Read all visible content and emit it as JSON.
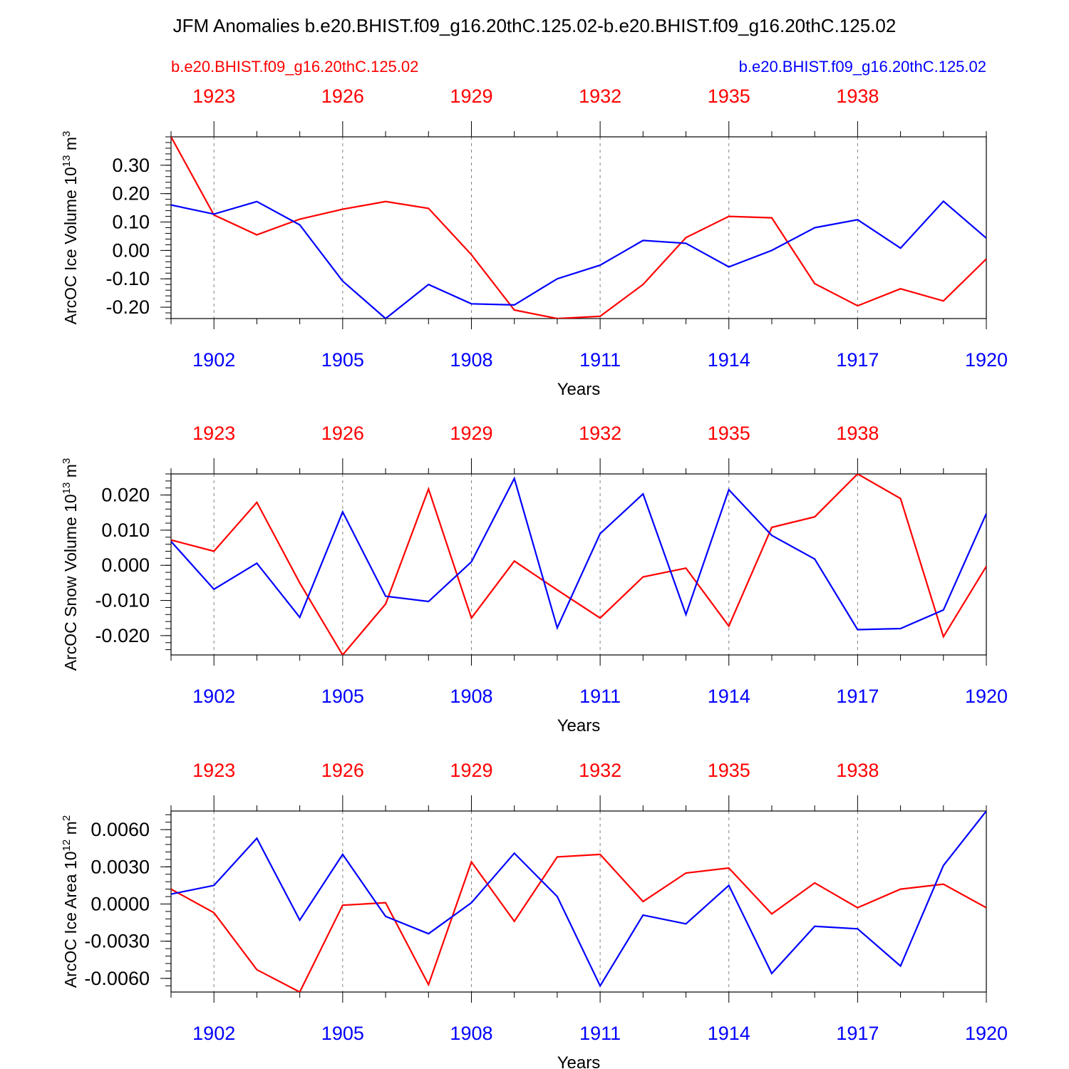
{
  "title": "JFM Anomalies b.e20.BHIST.f09_g16.20thC.125.02-b.e20.BHIST.f09_g16.20thC.125.02",
  "legend": {
    "left_run": "b.e20.BHIST.f09_g16.20thC.125.02",
    "right_run": "b.e20.BHIST.f09_g16.20thC.125.02"
  },
  "colors": {
    "run1": "#ff0000",
    "run2": "#0000ff",
    "axis": "#000000",
    "grid": "#808080"
  },
  "chart_data": [
    {
      "type": "line",
      "id": "ice-volume",
      "ylabel": "ArcOC Ice Volume 10",
      "ylabel_exp": "13",
      "ylabel_unit": " m",
      "ylabel_unit_exp": "3",
      "xlabel": "Years",
      "xlim": [
        1901,
        1920
      ],
      "ylim": [
        -0.24,
        0.4
      ],
      "yticks": [
        -0.2,
        -0.1,
        0.0,
        0.1,
        0.2,
        0.3
      ],
      "ytick_labels": [
        "-0.20",
        "-0.10",
        "0.00",
        "0.10",
        "0.20",
        "0.30"
      ],
      "yminor_step": 0.02,
      "bottom_ticks": [
        1902,
        1905,
        1908,
        1911,
        1914,
        1917,
        1920
      ],
      "bottom_tick_labels": [
        "1902",
        "1905",
        "1908",
        "1911",
        "1914",
        "1917",
        "1920"
      ],
      "top_ticks": [
        1902,
        1905,
        1908,
        1911,
        1914,
        1917
      ],
      "top_tick_labels": [
        "1923",
        "1926",
        "1929",
        "1932",
        "1935",
        "1938"
      ],
      "x": [
        1901,
        1902,
        1903,
        1904,
        1905,
        1906,
        1907,
        1908,
        1909,
        1910,
        1911,
        1912,
        1913,
        1914,
        1915,
        1916,
        1917,
        1918,
        1919,
        1920
      ],
      "series": [
        {
          "name": "b.e20.BHIST.f09_g16.20thC.125.02 (1922-1941)",
          "color": "#ff0000",
          "values": [
            0.4,
            0.125,
            0.055,
            0.11,
            0.145,
            0.172,
            0.148,
            -0.015,
            -0.21,
            -0.24,
            -0.232,
            -0.12,
            0.045,
            0.12,
            0.115,
            -0.117,
            -0.195,
            -0.135,
            -0.178,
            -0.03
          ]
        },
        {
          "name": "b.e20.BHIST.f09_g16.20thC.125.02 (1901-1920)",
          "color": "#0000ff",
          "values": [
            0.16,
            0.128,
            0.172,
            0.09,
            -0.108,
            -0.24,
            -0.12,
            -0.188,
            -0.192,
            -0.1,
            -0.052,
            0.035,
            0.025,
            -0.058,
            0.0,
            0.08,
            0.108,
            0.008,
            0.173,
            0.043
          ]
        }
      ]
    },
    {
      "type": "line",
      "id": "snow-volume",
      "ylabel": "ArcOC Snow Volume 10",
      "ylabel_exp": "13",
      "ylabel_unit": " m",
      "ylabel_unit_exp": "3",
      "xlabel": "Years",
      "xlim": [
        1901,
        1920
      ],
      "ylim": [
        -0.0255,
        0.026
      ],
      "yticks": [
        -0.02,
        -0.01,
        0.0,
        0.01,
        0.02
      ],
      "ytick_labels": [
        "-0.020",
        "-0.010",
        "0.000",
        "0.010",
        "0.020"
      ],
      "yminor_step": 0.002,
      "bottom_ticks": [
        1902,
        1905,
        1908,
        1911,
        1914,
        1917,
        1920
      ],
      "bottom_tick_labels": [
        "1902",
        "1905",
        "1908",
        "1911",
        "1914",
        "1917",
        "1920"
      ],
      "top_ticks": [
        1902,
        1905,
        1908,
        1911,
        1914,
        1917
      ],
      "top_tick_labels": [
        "1923",
        "1926",
        "1929",
        "1932",
        "1935",
        "1938"
      ],
      "x": [
        1901,
        1902,
        1903,
        1904,
        1905,
        1906,
        1907,
        1908,
        1909,
        1910,
        1911,
        1912,
        1913,
        1914,
        1915,
        1916,
        1917,
        1918,
        1919,
        1920
      ],
      "series": [
        {
          "name": "b.e20.BHIST.f09_g16.20thC.125.02 (1922-1941)",
          "color": "#ff0000",
          "values": [
            0.0072,
            0.004,
            0.0179,
            -0.005,
            -0.0255,
            -0.011,
            0.0217,
            -0.015,
            0.0012,
            -0.007,
            -0.015,
            -0.0033,
            -0.0008,
            -0.0173,
            0.0108,
            0.0138,
            0.026,
            0.019,
            -0.0203,
            -0.0003
          ]
        },
        {
          "name": "b.e20.BHIST.f09_g16.20thC.125.02 (1901-1920)",
          "color": "#0000ff",
          "values": [
            0.0068,
            -0.0068,
            0.0006,
            -0.0148,
            0.0152,
            -0.0088,
            -0.0103,
            0.001,
            0.0247,
            -0.0178,
            0.009,
            0.0203,
            -0.014,
            0.0215,
            0.0085,
            0.0018,
            -0.0183,
            -0.018,
            -0.0127,
            0.0147
          ]
        }
      ]
    },
    {
      "type": "line",
      "id": "ice-area",
      "ylabel": "ArcOC Ice Area 10",
      "ylabel_exp": "12",
      "ylabel_unit": " m",
      "ylabel_unit_exp": "2",
      "xlabel": "Years",
      "xlim": [
        1901,
        1920
      ],
      "ylim": [
        -0.0071,
        0.0075
      ],
      "yticks": [
        -0.006,
        -0.003,
        0.0,
        0.003,
        0.006
      ],
      "ytick_labels": [
        "-0.0060",
        "-0.0030",
        "0.0000",
        "0.0030",
        "0.0060"
      ],
      "yminor_step": 0.0006,
      "bottom_ticks": [
        1902,
        1905,
        1908,
        1911,
        1914,
        1917,
        1920
      ],
      "bottom_tick_labels": [
        "1902",
        "1905",
        "1908",
        "1911",
        "1914",
        "1917",
        "1920"
      ],
      "top_ticks": [
        1902,
        1905,
        1908,
        1911,
        1914,
        1917
      ],
      "top_tick_labels": [
        "1923",
        "1926",
        "1929",
        "1932",
        "1935",
        "1938"
      ],
      "x": [
        1901,
        1902,
        1903,
        1904,
        1905,
        1906,
        1907,
        1908,
        1909,
        1910,
        1911,
        1912,
        1913,
        1914,
        1915,
        1916,
        1917,
        1918,
        1919,
        1920
      ],
      "series": [
        {
          "name": "b.e20.BHIST.f09_g16.20thC.125.02 (1922-1941)",
          "color": "#ff0000",
          "values": [
            0.0012,
            -0.0007,
            -0.0053,
            -0.0071,
            -0.0001,
            0.0001,
            -0.0065,
            0.0034,
            -0.0014,
            0.0038,
            0.004,
            0.0002,
            0.0025,
            0.0029,
            -0.0008,
            0.0017,
            -0.0003,
            0.0012,
            0.0016,
            -0.0003
          ]
        },
        {
          "name": "b.e20.BHIST.f09_g16.20thC.125.02 (1901-1920)",
          "color": "#0000ff",
          "values": [
            0.0008,
            0.0015,
            0.0053,
            -0.0013,
            0.004,
            -0.001,
            -0.0024,
            0.0001,
            0.0041,
            0.0006,
            -0.0066,
            -0.0009,
            -0.0016,
            0.0015,
            -0.0056,
            -0.0018,
            -0.002,
            -0.005,
            0.0031,
            0.0075
          ]
        }
      ]
    }
  ]
}
